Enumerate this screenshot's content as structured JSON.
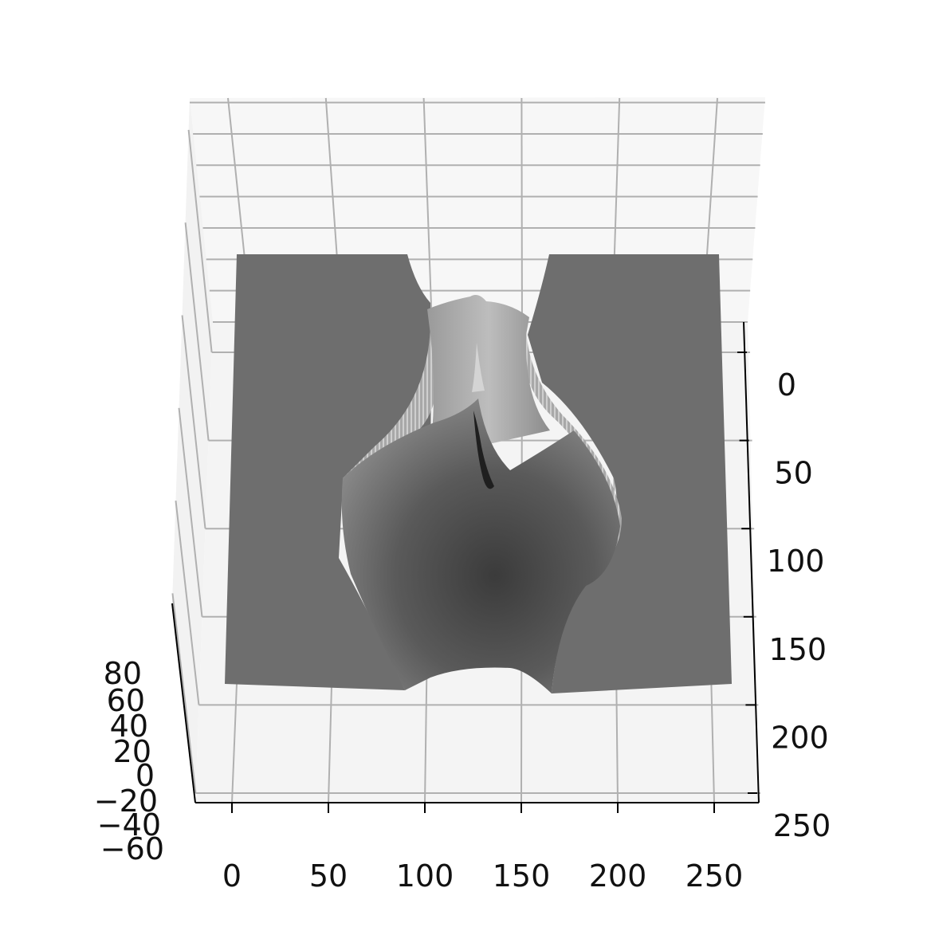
{
  "chart_data": {
    "type": "surface3d",
    "title": "",
    "xlabel": "",
    "ylabel": "",
    "zlabel": "",
    "x_ticks": [
      0,
      50,
      100,
      150,
      200,
      250
    ],
    "y_ticks": [
      0,
      50,
      100,
      150,
      200,
      250
    ],
    "z_ticks": [
      80,
      60,
      40,
      20,
      0,
      -20,
      -40,
      -60
    ],
    "x_tick_labels": [
      "0",
      "50",
      "100",
      "150",
      "200",
      "250"
    ],
    "y_tick_labels": [
      "0",
      "50",
      "100",
      "150",
      "200",
      "250"
    ],
    "z_tick_labels": [
      "80",
      "60",
      "40",
      "20",
      "0",
      "−20",
      "−40",
      "−60"
    ],
    "xlim": [
      -20,
      275
    ],
    "ylim": [
      -25,
      256
    ],
    "zlim": [
      -60,
      80
    ],
    "surface_extent": {
      "x": [
        0,
        256
      ],
      "y": [
        0,
        175
      ]
    },
    "grid": true,
    "colormap": "gray",
    "colors": {
      "pane_back": "#f7f7f7",
      "pane_side": "#f2f2f2",
      "pane_floor": "#f4f4f4",
      "grid": "#b0b0b0",
      "surface_flat": "#6e6e6e",
      "axis": "#000000"
    }
  }
}
